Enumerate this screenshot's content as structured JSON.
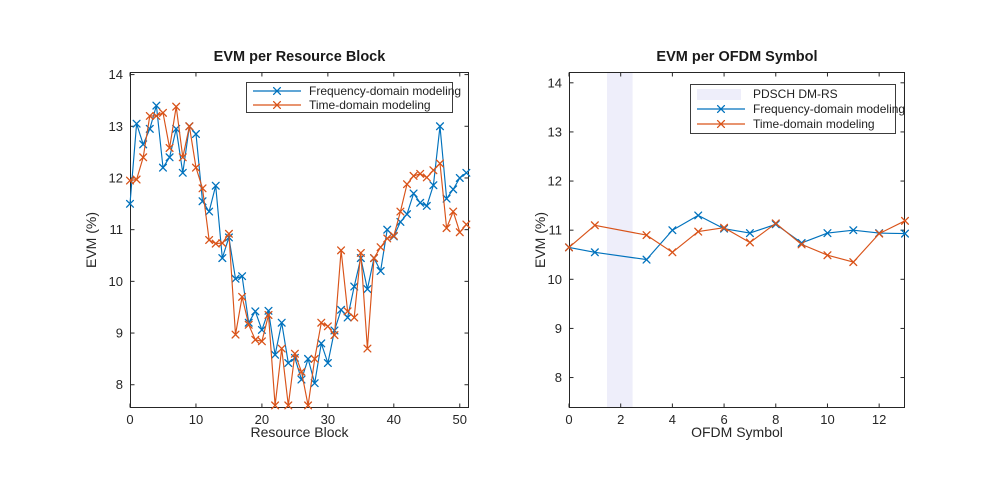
{
  "colors": {
    "background": "#ffffff",
    "axis": "#262626",
    "text": "#1f1f1f",
    "frequency_domain": "#0072BD",
    "time_domain": "#D95319",
    "dmrs_band": "#EEEEFA"
  },
  "chart_data": [
    {
      "type": "line",
      "title": "EVM per Resource Block",
      "xlabel": "Resource Block",
      "ylabel": "EVM (%)",
      "xlim": [
        0,
        51.4
      ],
      "ylim": [
        7.55,
        14.05
      ],
      "xticks": [
        0,
        10,
        20,
        30,
        40,
        50
      ],
      "yticks": [
        8,
        9,
        10,
        11,
        12,
        13,
        14
      ],
      "grid": false,
      "marker": "x",
      "legend_position": "top-right-inside",
      "series": [
        {
          "name": "Frequency-domain modeling",
          "color": "#0072BD",
          "x": [
            0,
            1,
            2,
            3,
            4,
            5,
            6,
            7,
            8,
            9,
            10,
            11,
            12,
            13,
            14,
            15,
            16,
            17,
            18,
            19,
            20,
            21,
            22,
            23,
            24,
            25,
            26,
            27,
            28,
            29,
            30,
            31,
            32,
            33,
            34,
            35,
            36,
            37,
            38,
            39,
            40,
            41,
            42,
            43,
            44,
            45,
            46,
            47,
            48,
            49,
            50,
            51
          ],
          "values": [
            11.5,
            13.05,
            12.65,
            12.95,
            13.4,
            12.2,
            12.4,
            12.95,
            12.1,
            13.0,
            12.85,
            11.55,
            11.35,
            11.85,
            10.45,
            10.85,
            10.05,
            10.1,
            9.2,
            9.42,
            9.06,
            9.43,
            8.58,
            9.2,
            8.42,
            8.52,
            8.1,
            8.5,
            8.03,
            8.8,
            8.42,
            9.05,
            9.45,
            9.3,
            9.9,
            10.45,
            9.85,
            10.45,
            10.2,
            11.0,
            10.87,
            11.15,
            11.3,
            11.7,
            11.52,
            11.46,
            11.86,
            13.0,
            11.6,
            11.78,
            12.0,
            12.1
          ]
        },
        {
          "name": "Time-domain modeling",
          "color": "#D95319",
          "x": [
            0,
            1,
            2,
            3,
            4,
            5,
            6,
            7,
            8,
            9,
            10,
            11,
            12,
            13,
            14,
            15,
            16,
            17,
            18,
            19,
            20,
            21,
            22,
            23,
            24,
            25,
            26,
            27,
            28,
            29,
            30,
            31,
            32,
            33,
            34,
            35,
            36,
            37,
            38,
            39,
            40,
            41,
            42,
            43,
            44,
            45,
            46,
            47,
            48,
            49,
            50,
            51
          ],
          "values": [
            11.95,
            11.97,
            12.4,
            13.2,
            13.2,
            13.26,
            12.58,
            13.38,
            12.4,
            13.0,
            12.2,
            11.8,
            10.8,
            10.73,
            10.74,
            10.92,
            8.97,
            9.7,
            9.16,
            8.87,
            8.84,
            9.35,
            7.6,
            8.7,
            7.6,
            8.6,
            8.25,
            7.6,
            8.5,
            9.2,
            9.13,
            8.96,
            10.6,
            9.42,
            9.3,
            10.55,
            8.7,
            10.45,
            10.66,
            10.83,
            10.88,
            11.35,
            11.88,
            12.04,
            12.08,
            12.01,
            12.15,
            12.28,
            11.03,
            11.35,
            10.95,
            11.1
          ]
        }
      ]
    },
    {
      "type": "line",
      "title": "EVM per OFDM Symbol",
      "xlabel": "OFDM Symbol",
      "ylabel": "EVM (%)",
      "xlim": [
        0,
        13
      ],
      "ylim": [
        7.38,
        14.22
      ],
      "xticks": [
        0,
        2,
        4,
        6,
        8,
        10,
        12
      ],
      "yticks": [
        8,
        9,
        10,
        11,
        12,
        13,
        14
      ],
      "grid": false,
      "marker": "x",
      "legend_position": "top-right-inside",
      "band": {
        "label": "PDSCH DM-RS",
        "x_start": 1.47,
        "x_end": 2.46,
        "color": "#EEEEFA"
      },
      "series": [
        {
          "name": "Frequency-domain modeling",
          "color": "#0072BD",
          "x": [
            0,
            1,
            3,
            4,
            5,
            6,
            7,
            8,
            9,
            10,
            11,
            12,
            13
          ],
          "values": [
            10.65,
            10.55,
            10.4,
            11.0,
            11.3,
            11.03,
            10.94,
            11.12,
            10.74,
            10.94,
            11.0,
            10.94,
            10.93
          ]
        },
        {
          "name": "Time-domain modeling",
          "color": "#D95319",
          "x": [
            0,
            1,
            3,
            4,
            5,
            6,
            7,
            8,
            9,
            10,
            11,
            12,
            13
          ],
          "values": [
            10.65,
            11.1,
            10.9,
            10.55,
            10.97,
            11.05,
            10.75,
            11.14,
            10.71,
            10.49,
            10.35,
            10.93,
            11.19
          ]
        }
      ]
    }
  ]
}
